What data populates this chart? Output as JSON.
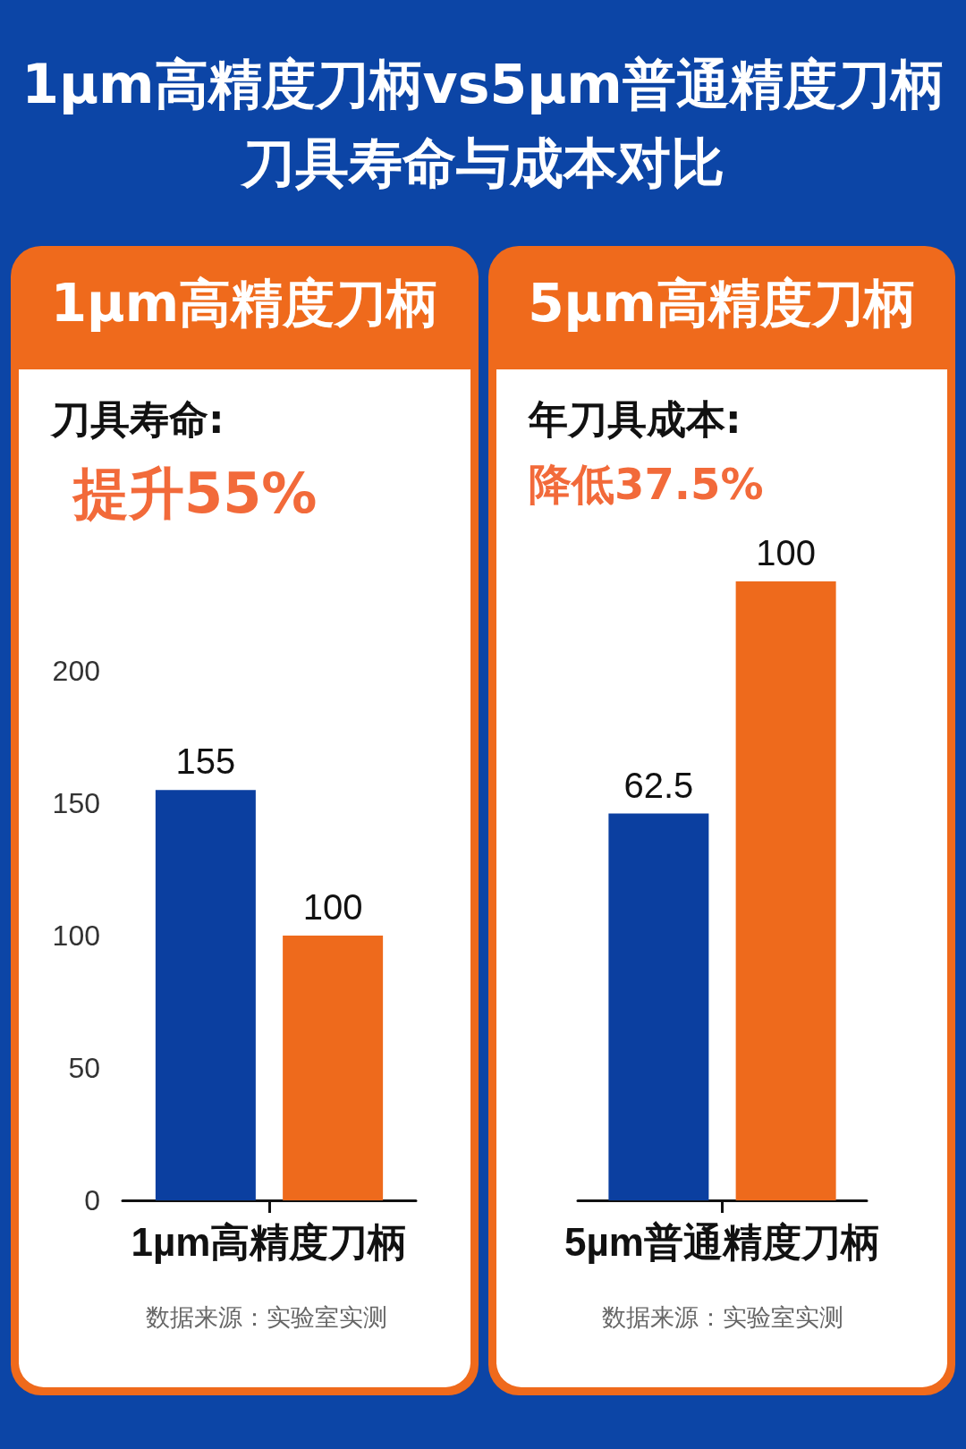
{
  "chart_data": [
    {
      "type": "other",
      "title": "1µm高精度刀柄vs5µm普通精度刀柄",
      "subtitle": "刀具寿命与成本对比"
    },
    {
      "type": "bar",
      "title": "1µm高精度刀柄",
      "categories": [
        "1µm高精度刀柄"
      ],
      "series": [
        {
          "color": "#0b3fa0",
          "values": [
            155
          ]
        },
        {
          "color": "#ee6a1c",
          "values": [
            100
          ]
        }
      ],
      "ylim": [
        0,
        200
      ],
      "yticks": [
        0,
        50,
        100,
        150,
        200
      ],
      "data_labels": true,
      "annotations": [
        "刀具寿命:",
        "提升55%",
        "数据来源：实验室实测"
      ]
    },
    {
      "type": "bar",
      "title": "5µm高精度刀柄",
      "categories": [
        "5µm普通精度刀柄"
      ],
      "series": [
        {
          "color": "#0b3fa0",
          "values": [
            62.5
          ]
        },
        {
          "color": "#ee6a1c",
          "values": [
            100
          ]
        }
      ],
      "data_labels": true,
      "tick_labels": "x",
      "annotations": [
        "年刀具成本:",
        "降低37.5%",
        "数据来源：实验室实测"
      ]
    }
  ]
}
